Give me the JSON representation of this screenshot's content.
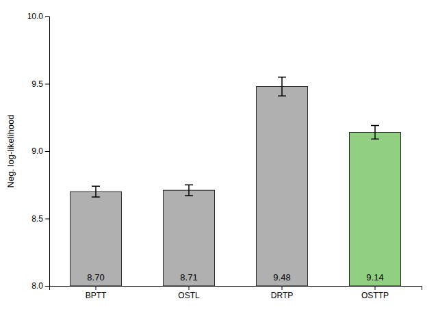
{
  "chart_data": {
    "type": "bar",
    "categories": [
      "BPTT",
      "OSTL",
      "DRTP",
      "OSTTP"
    ],
    "values": [
      8.7,
      8.71,
      9.48,
      9.14
    ],
    "errors": [
      0.04,
      0.04,
      0.07,
      0.05
    ],
    "value_labels": [
      "8.70",
      "8.71",
      "9.48",
      "9.14"
    ],
    "data_labels": true,
    "colors": [
      "#b0b0b0",
      "#b0b0b0",
      "#b0b0b0",
      "#90d080"
    ],
    "ylabel": "Neg. log-likelihood",
    "ylim": [
      8.0,
      10.0
    ],
    "yticks": [
      {
        "value": 8.0,
        "label": "8.0"
      },
      8.5,
      {
        "value": 9.0,
        "label": "9.0"
      },
      9.5,
      {
        "value": 10.0,
        "label": "10.0"
      }
    ],
    "grid": false
  }
}
